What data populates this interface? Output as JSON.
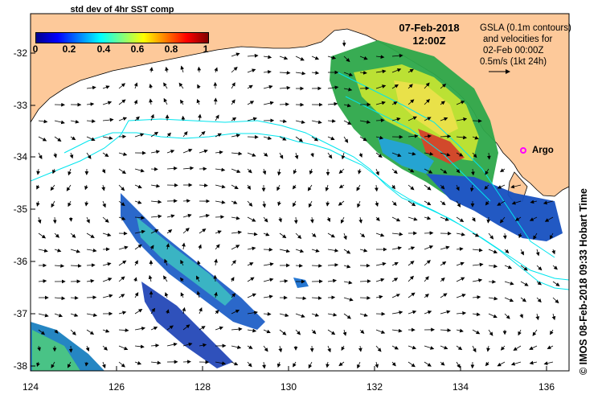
{
  "colorbar": {
    "title": "std dev of 4hr SST comp",
    "ticks": [
      "0",
      "0.2",
      "0.4",
      "0.6",
      "0.8",
      "1"
    ],
    "colors": [
      "#00008f",
      "#0000ff",
      "#0080ff",
      "#00ffff",
      "#80ff80",
      "#ffff00",
      "#ff8000",
      "#ff0000",
      "#800000"
    ]
  },
  "header": {
    "date": "07-Feb-2018",
    "time": "12:00Z"
  },
  "gsla_note": {
    "lines": [
      "GSLA (0.1m contours)",
      "and velocities for",
      "02-Feb 00:00Z",
      "0.5m/s (1kt 24h)"
    ]
  },
  "argo": {
    "label": "Argo",
    "lon": 135.5,
    "lat": -33.9,
    "color": "#ff00ff"
  },
  "credit": "© IMOS 08-Feb-2018 09:33 Hobart Time",
  "axes": {
    "lon_ticks": [
      "124",
      "126",
      "128",
      "130",
      "132",
      "134",
      "136"
    ],
    "lat_ticks": [
      "-32",
      "-33",
      "-34",
      "-35",
      "-36",
      "-37",
      "-38"
    ],
    "lon_range": [
      124,
      136.5
    ],
    "lat_range": [
      -31.4,
      -38.1
    ]
  },
  "colors": {
    "land": "#fdc99a",
    "ocean": "#ffffff",
    "contour": "#00e5ee"
  }
}
